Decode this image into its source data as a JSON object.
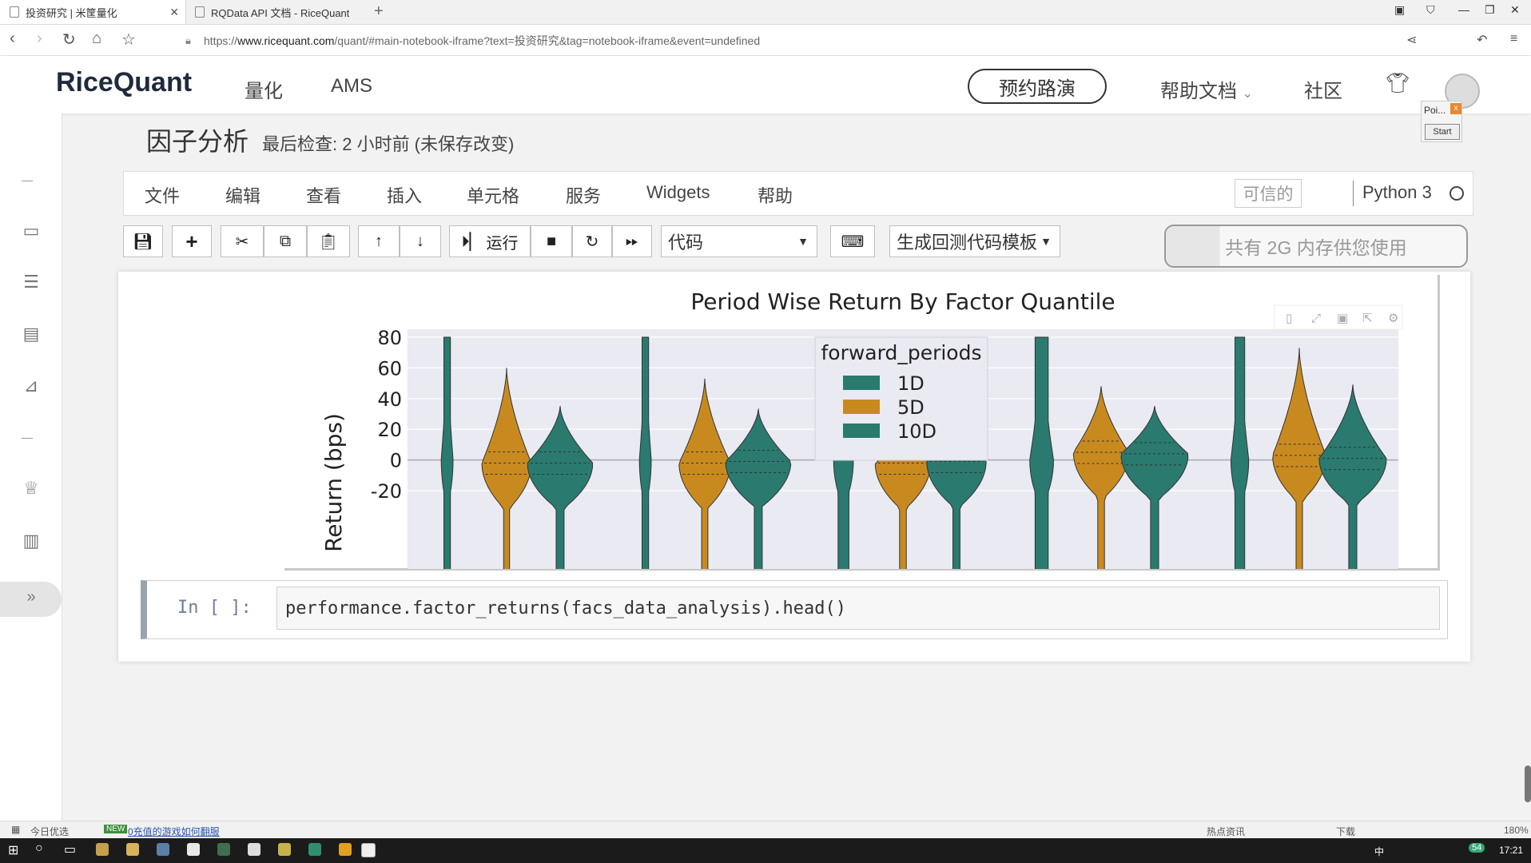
{
  "browser": {
    "tabs": [
      {
        "title": "投资研究 | 米筐量化"
      },
      {
        "title": "RQData API 文档 - RiceQuant"
      }
    ],
    "url_prefix": "https://",
    "url_domain": "www.ricequant.com",
    "url_rest": "/quant/#main-notebook-iframe?text=投资研究&tag=notebook-iframe&event=undefined"
  },
  "site": {
    "logo": "RiceQuant",
    "nav": [
      "量化",
      "AMS"
    ],
    "roadshow_button": "预约路演",
    "help_docs": "帮助文档",
    "community": "社区"
  },
  "popup": {
    "title": "Poi...",
    "close": "x",
    "start": "Start"
  },
  "notebook": {
    "title": "因子分析",
    "meta": "最后检查: 2 小时前  (未保存改变)",
    "menu": [
      "文件",
      "编辑",
      "查看",
      "插入",
      "单元格",
      "服务",
      "Widgets",
      "帮助"
    ],
    "trusted": "可信的",
    "kernel": "Python 3",
    "run_label": "运行",
    "cell_type": "代码",
    "template_label": "生成回测代码模板",
    "memory_info": "共有 2G 内存供您使用",
    "cell_prompt": "In  [  ]:",
    "cell_code": "performance.factor_returns(facs_data_analysis).head()"
  },
  "chart_data": {
    "type": "violin",
    "title": "Period Wise Return By Factor Quantile",
    "ylabel": "Return (bps)",
    "ylim": [
      -30,
      80
    ],
    "yticks": [
      80,
      60,
      40,
      20,
      0,
      -20
    ],
    "legend_title": "forward_periods",
    "legend_placement": "top-center",
    "colors": {
      "1D": "#2a7a6f",
      "5D": "#c88a1f",
      "10D": "#2a7a6f"
    },
    "series": [
      {
        "name": "1D",
        "medians": [
          0,
          0,
          0,
          0,
          0
        ],
        "tops": [
          80,
          80,
          80,
          80,
          80
        ],
        "widths": [
          0.06,
          0.06,
          0.1,
          0.12,
          0.09
        ]
      },
      {
        "name": "5D",
        "medians": [
          -2,
          -2,
          -2,
          5,
          3
        ],
        "tops": [
          60,
          53,
          22,
          48,
          73
        ],
        "widths": [
          0.25,
          0.26,
          0.28,
          0.28,
          0.27
        ]
      },
      {
        "name": "10D",
        "medians": [
          -2,
          -1,
          -1,
          4,
          1
        ],
        "tops": [
          35,
          33,
          24,
          35,
          49
        ],
        "widths": [
          0.33,
          0.33,
          0.3,
          0.34,
          0.34
        ]
      }
    ],
    "grid": true
  },
  "status": {
    "left": "今日优选",
    "news_badge": "NEW",
    "news_text": "0充值的游戏如何翻服",
    "right_items": [
      "热点资讯",
      "下载"
    ],
    "zoom": "180%"
  },
  "taskbar": {
    "time": "17:21",
    "lang": "中",
    "badge": "54"
  }
}
